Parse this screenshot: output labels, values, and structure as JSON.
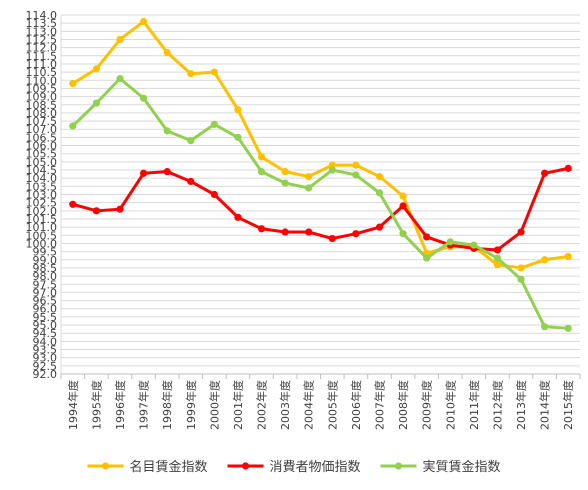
{
  "chart_data": {
    "type": "line",
    "title": "",
    "xlabel": "",
    "ylabel": "",
    "ylim": [
      92.0,
      114.0
    ],
    "ytick_step": 0.5,
    "ytick_decimals": 1,
    "grid": "horizontal",
    "legend_position": "bottom",
    "categories": [
      "1994年度",
      "1995年度",
      "1996年度",
      "1997年度",
      "1998年度",
      "1999年度",
      "2000年度",
      "2001年度",
      "2002年度",
      "2003年度",
      "2004年度",
      "2005年度",
      "2006年度",
      "2007年度",
      "2008年度",
      "2009年度",
      "2010年度",
      "2011年度",
      "2012年度",
      "2013年度",
      "2014年度",
      "2015年度"
    ],
    "series": [
      {
        "name": "名目賃金指数",
        "color": "#FFC000",
        "values": [
          109.8,
          110.7,
          112.5,
          113.6,
          111.7,
          110.4,
          110.5,
          108.2,
          105.3,
          104.4,
          104.1,
          104.8,
          104.8,
          104.1,
          102.9,
          99.4,
          99.8,
          99.8,
          98.7,
          98.5,
          99.0,
          99.2
        ]
      },
      {
        "name": "消費者物価指数",
        "color": "#FF0000",
        "values": [
          102.4,
          102.0,
          102.1,
          104.3,
          104.4,
          103.8,
          103.0,
          101.6,
          100.9,
          100.7,
          100.7,
          100.3,
          100.6,
          101.0,
          102.3,
          100.4,
          99.9,
          99.7,
          99.6,
          100.7,
          104.3,
          104.6
        ]
      },
      {
        "name": "実質賃金指数",
        "color": "#92D050",
        "values": [
          107.2,
          108.6,
          110.1,
          108.9,
          106.9,
          106.3,
          107.3,
          106.5,
          104.4,
          103.7,
          103.4,
          104.5,
          104.2,
          103.1,
          100.6,
          99.1,
          100.1,
          99.9,
          99.1,
          97.8,
          94.9,
          94.8
        ]
      }
    ]
  }
}
